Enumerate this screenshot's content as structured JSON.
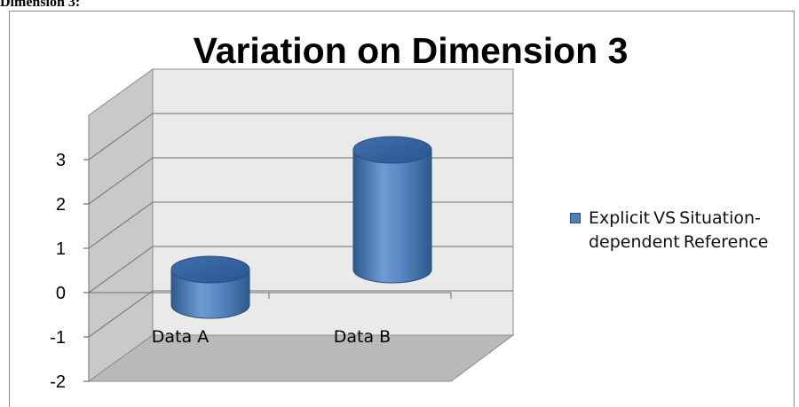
{
  "document": {
    "heading": "Dimension 3:"
  },
  "chart_data": {
    "type": "bar",
    "title": "Variation on Dimension 3",
    "categories": [
      "Data A",
      "Data B"
    ],
    "series": [
      {
        "name": "Explicit VS Situation-dependent Reference",
        "values": [
          -0.8,
          2.7
        ]
      }
    ],
    "ylim": [
      -2,
      3
    ],
    "yticks": [
      "3",
      "2",
      "1",
      "0",
      "-1",
      "-2"
    ],
    "grid": true,
    "style": "3d-cylinder",
    "legend_position": "right",
    "colors": {
      "series": "#4f81bd",
      "series_dark": "#2c5a8f",
      "series_light": "#7fa6d8",
      "wall": "#eaeaea",
      "floor": "#b9b9b9",
      "side_wall": "#c9c9c9"
    }
  }
}
